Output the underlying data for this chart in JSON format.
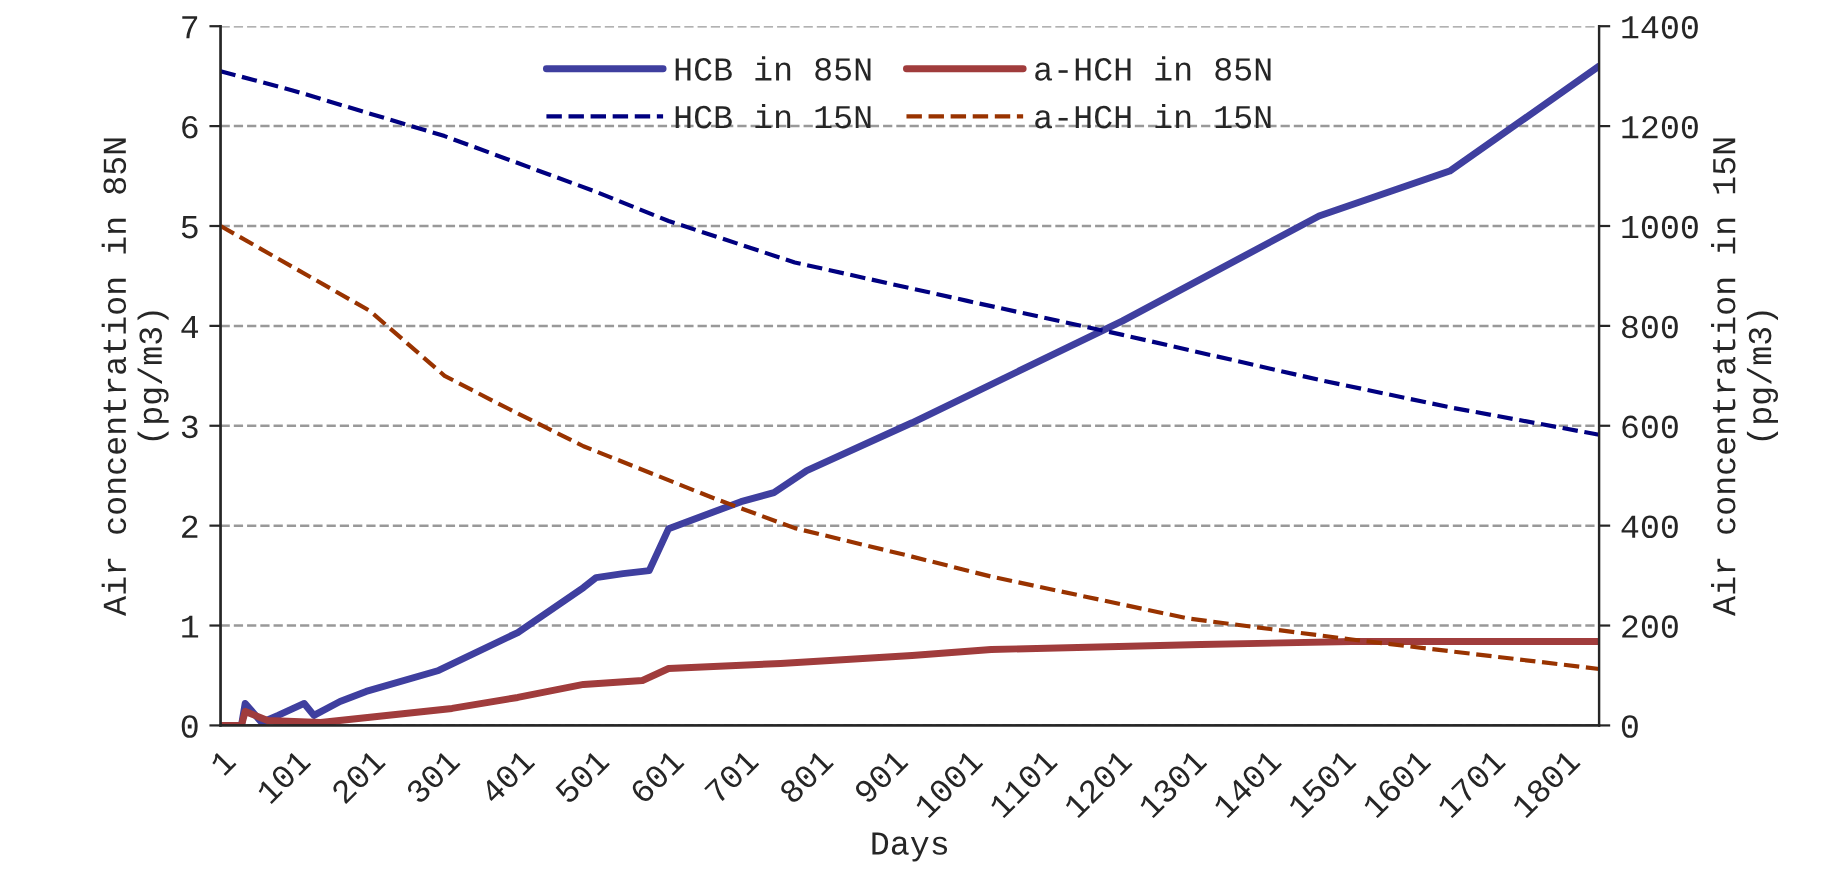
{
  "chart_data": {
    "type": "line",
    "xlabel": "Days",
    "ylabel": "Air concentration in 85N\n(pg/m3)",
    "y2label": "Air concentration in 15N\n(pg/m3)",
    "xlim": [
      1,
      1847
    ],
    "xticks": [
      1,
      101,
      201,
      301,
      401,
      501,
      601,
      701,
      801,
      901,
      1001,
      1101,
      1201,
      1301,
      1401,
      1501,
      1601,
      1701,
      1801
    ],
    "ylim": [
      0,
      7
    ],
    "yticks": [
      0,
      1,
      2,
      3,
      4,
      5,
      6,
      7
    ],
    "y2lim": [
      0,
      1400
    ],
    "y2ticks": [
      0,
      200,
      400,
      600,
      800,
      1000,
      1200,
      1400
    ],
    "grid": "y",
    "legend": "top",
    "marker": "none",
    "series": [
      {
        "name": "HCB in 85N",
        "color": "#3f3f9f",
        "line_style": "solid",
        "x": [
          1,
          29,
          34,
          56,
          78,
          113,
          126,
          161,
          196,
          293,
          399,
          487,
          504,
          540,
          575,
          601,
          698,
          742,
          786,
          927,
          1209,
          1472,
          1647,
          1847
        ],
        "values": [
          0,
          0,
          0.22,
          0.03,
          0.1,
          0.22,
          0.1,
          0.24,
          0.34,
          0.55,
          0.93,
          1.38,
          1.48,
          1.52,
          1.55,
          1.97,
          2.24,
          2.33,
          2.55,
          3.03,
          4.05,
          5.1,
          5.55,
          6.6
        ]
      },
      {
        "name": "a-HCH in 85N",
        "color": "#a03c3c",
        "line_style": "solid",
        "x": [
          1,
          29,
          34,
          64,
          135,
          223,
          311,
          399,
          487,
          566,
          601,
          751,
          927,
          1033,
          1314,
          1516,
          1847
        ],
        "values": [
          0,
          0,
          0.14,
          0.05,
          0.03,
          0.1,
          0.17,
          0.28,
          0.41,
          0.45,
          0.57,
          0.62,
          0.7,
          0.76,
          0.81,
          0.84,
          0.84
        ]
      },
      {
        "name": "HCB in 15N",
        "color": "#000080",
        "line_style": "dashed",
        "axis": "y2",
        "x": [
          1,
          101,
          301,
          501,
          601,
          770,
          1001,
          1209,
          1472,
          1647,
          1847
        ],
        "values": [
          1310,
          1270,
          1180,
          1070,
          1010,
          927,
          850,
          782,
          692,
          637,
          582
        ]
      },
      {
        "name": "a-HCH in 15N",
        "color": "#993300",
        "line_style": "dashed",
        "axis": "y2",
        "x": [
          1,
          101,
          201,
          301,
          372,
          487,
          663,
          770,
          927,
          1033,
          1297,
          1516,
          1847
        ],
        "values": [
          1000,
          915,
          830,
          700,
          645,
          559,
          454,
          395,
          338,
          298,
          214,
          172,
          113
        ]
      }
    ]
  }
}
